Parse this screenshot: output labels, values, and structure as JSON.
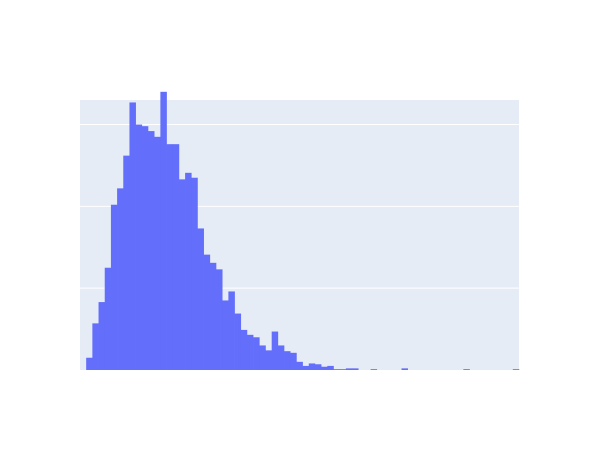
{
  "chart_data": {
    "type": "bar",
    "title": "",
    "xlabel": "",
    "ylabel": "",
    "grid": {
      "horizontal": true,
      "vertical": false
    },
    "ylim": [
      0,
      330
    ],
    "gridlines": [
      100,
      200,
      300
    ],
    "values": [
      0,
      15,
      57,
      83,
      125,
      202,
      222,
      262,
      327,
      300,
      298,
      292,
      285,
      340,
      276,
      276,
      233,
      241,
      235,
      173,
      141,
      131,
      123,
      85,
      96,
      69,
      49,
      43,
      40,
      30,
      24,
      47,
      30,
      23,
      21,
      10,
      5,
      8,
      7,
      4,
      5,
      1,
      1,
      2,
      2,
      0,
      0,
      1,
      0,
      0,
      0,
      0,
      2,
      0,
      0,
      0,
      0,
      0,
      0,
      0,
      0,
      0,
      1,
      0,
      0,
      0,
      0,
      0,
      0,
      0,
      1
    ],
    "bar_color": "#636efa",
    "plot_bg_color": "#e5ecf6"
  }
}
